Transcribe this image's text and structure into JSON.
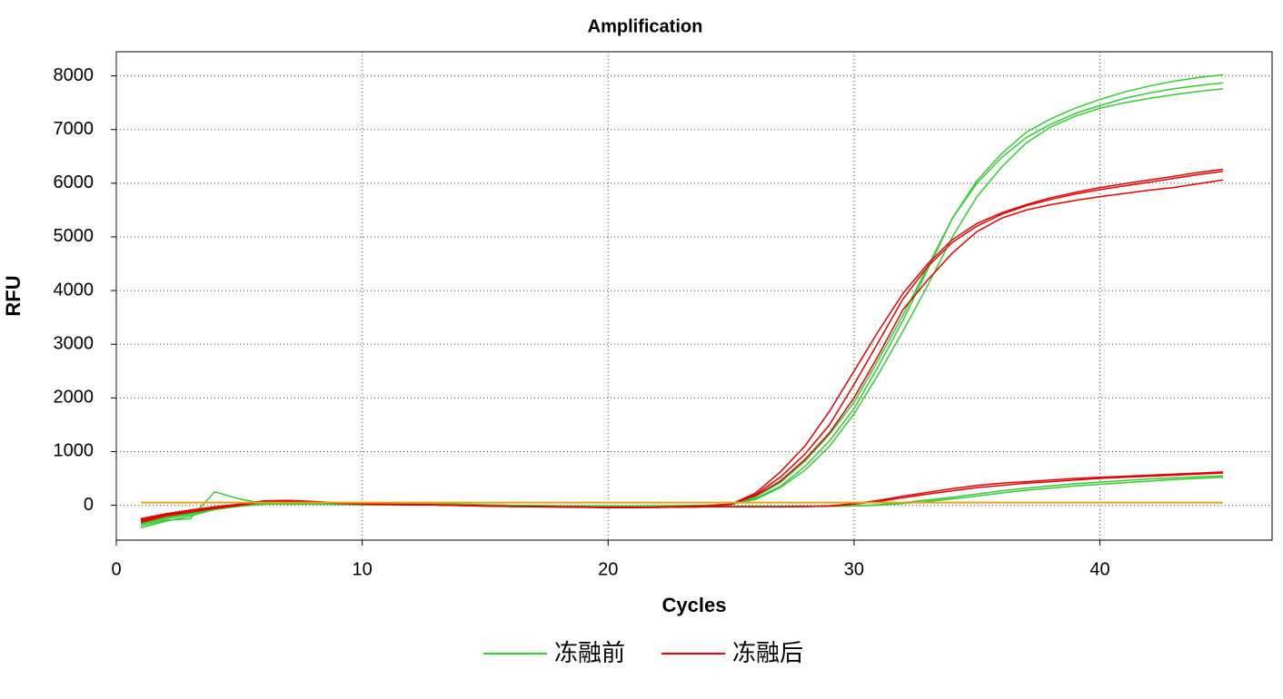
{
  "chart_data": {
    "type": "line",
    "title": "Amplification",
    "x_label": "Cycles",
    "y_label": "RFU",
    "x": [
      1,
      2,
      3,
      4,
      5,
      6,
      7,
      8,
      9,
      10,
      11,
      12,
      13,
      14,
      15,
      16,
      17,
      18,
      19,
      20,
      21,
      22,
      23,
      24,
      25,
      26,
      27,
      28,
      29,
      30,
      31,
      32,
      33,
      34,
      35,
      36,
      37,
      38,
      39,
      40,
      41,
      42,
      43,
      44,
      45
    ],
    "xlim": [
      0,
      47
    ],
    "ylim": [
      -650,
      8450
    ],
    "xticks": [
      0,
      10,
      20,
      30,
      40
    ],
    "yticks": [
      0,
      1000,
      2000,
      3000,
      4000,
      5000,
      6000,
      7000,
      8000
    ],
    "grid": true,
    "legend": "bottom",
    "threshold": 50,
    "threshold_color": "#e8a317",
    "series": [
      {
        "name": "冻融前",
        "color": "#33cc33",
        "values": [
          [
            -380,
            -280,
            -250,
            250,
            120,
            30,
            20,
            20,
            15,
            10,
            10,
            40,
            30,
            20,
            10,
            0,
            -5,
            -10,
            -10,
            -15,
            -15,
            -10,
            -10,
            0,
            20,
            130,
            350,
            720,
            1200,
            1800,
            2600,
            3450,
            4400,
            5350,
            6050,
            6550,
            6950,
            7200,
            7400,
            7560,
            7700,
            7810,
            7900,
            7970,
            8020
          ],
          [
            -330,
            -230,
            -150,
            -60,
            0,
            30,
            40,
            30,
            20,
            10,
            10,
            20,
            15,
            10,
            5,
            0,
            -5,
            -10,
            -10,
            -15,
            -15,
            -10,
            -5,
            0,
            20,
            160,
            420,
            820,
            1320,
            1920,
            2720,
            3550,
            4450,
            5350,
            6000,
            6480,
            6850,
            7100,
            7300,
            7450,
            7580,
            7680,
            7760,
            7820,
            7870
          ],
          [
            -420,
            -300,
            -200,
            -80,
            -10,
            20,
            30,
            30,
            20,
            10,
            5,
            10,
            5,
            0,
            -5,
            -10,
            -15,
            -15,
            -20,
            -20,
            -20,
            -15,
            -10,
            0,
            15,
            110,
            330,
            650,
            1100,
            1700,
            2450,
            3250,
            4100,
            5000,
            5750,
            6300,
            6750,
            7050,
            7250,
            7400,
            7500,
            7580,
            7650,
            7710,
            7760
          ],
          [
            -350,
            -250,
            -170,
            -80,
            -20,
            20,
            30,
            25,
            20,
            15,
            10,
            10,
            5,
            0,
            -5,
            -10,
            -10,
            -15,
            -15,
            -20,
            -20,
            -20,
            -20,
            -20,
            -20,
            -20,
            -20,
            -20,
            -20,
            -10,
            10,
            50,
            100,
            150,
            210,
            270,
            320,
            360,
            400,
            430,
            460,
            490,
            510,
            530,
            550
          ],
          [
            -300,
            -220,
            -140,
            -60,
            -10,
            25,
            35,
            30,
            25,
            15,
            10,
            10,
            5,
            0,
            -5,
            -10,
            -10,
            -15,
            -15,
            -20,
            -20,
            -20,
            -20,
            -20,
            -20,
            -20,
            -20,
            -20,
            -20,
            -10,
            0,
            30,
            70,
            120,
            170,
            230,
            280,
            320,
            360,
            390,
            420,
            450,
            480,
            500,
            520
          ]
        ]
      },
      {
        "name": "冻融后",
        "color": "#e60000",
        "values": [
          [
            -280,
            -180,
            -100,
            -40,
            10,
            70,
            80,
            60,
            40,
            25,
            15,
            10,
            5,
            0,
            -10,
            -20,
            -25,
            -30,
            -35,
            -40,
            -40,
            -35,
            -25,
            -10,
            20,
            230,
            620,
            1100,
            1750,
            2500,
            3250,
            3950,
            4500,
            4950,
            5250,
            5450,
            5600,
            5730,
            5830,
            5920,
            5990,
            6060,
            6130,
            6200,
            6260
          ],
          [
            -320,
            -200,
            -130,
            -60,
            0,
            60,
            70,
            55,
            35,
            20,
            15,
            10,
            5,
            -5,
            -15,
            -25,
            -30,
            -35,
            -40,
            -45,
            -45,
            -40,
            -30,
            -15,
            15,
            200,
            520,
            950,
            1500,
            2250,
            3050,
            3850,
            4450,
            4900,
            5200,
            5420,
            5580,
            5700,
            5800,
            5880,
            5950,
            6020,
            6090,
            6160,
            6220
          ],
          [
            -250,
            -160,
            -90,
            -30,
            20,
            80,
            90,
            70,
            45,
            30,
            20,
            15,
            10,
            0,
            -10,
            -20,
            -25,
            -30,
            -35,
            -40,
            -40,
            -35,
            -25,
            -10,
            20,
            180,
            450,
            850,
            1350,
            2000,
            2800,
            3650,
            4200,
            4700,
            5100,
            5350,
            5500,
            5600,
            5680,
            5750,
            5810,
            5870,
            5920,
            5990,
            6060
          ],
          [
            -270,
            -170,
            -100,
            -40,
            10,
            70,
            80,
            65,
            45,
            30,
            20,
            10,
            5,
            -5,
            -15,
            -20,
            -25,
            -30,
            -35,
            -40,
            -40,
            -40,
            -35,
            -30,
            -30,
            -30,
            -30,
            -25,
            -10,
            30,
            90,
            170,
            240,
            310,
            370,
            410,
            440,
            470,
            500,
            520,
            540,
            560,
            580,
            600,
            620
          ],
          [
            -290,
            -190,
            -110,
            -50,
            0,
            60,
            70,
            60,
            40,
            25,
            15,
            10,
            5,
            -5,
            -15,
            -20,
            -25,
            -30,
            -35,
            -40,
            -40,
            -40,
            -35,
            -30,
            -30,
            -30,
            -30,
            -25,
            -15,
            20,
            70,
            140,
            210,
            270,
            330,
            370,
            410,
            440,
            470,
            500,
            520,
            540,
            560,
            580,
            600
          ]
        ]
      }
    ]
  }
}
